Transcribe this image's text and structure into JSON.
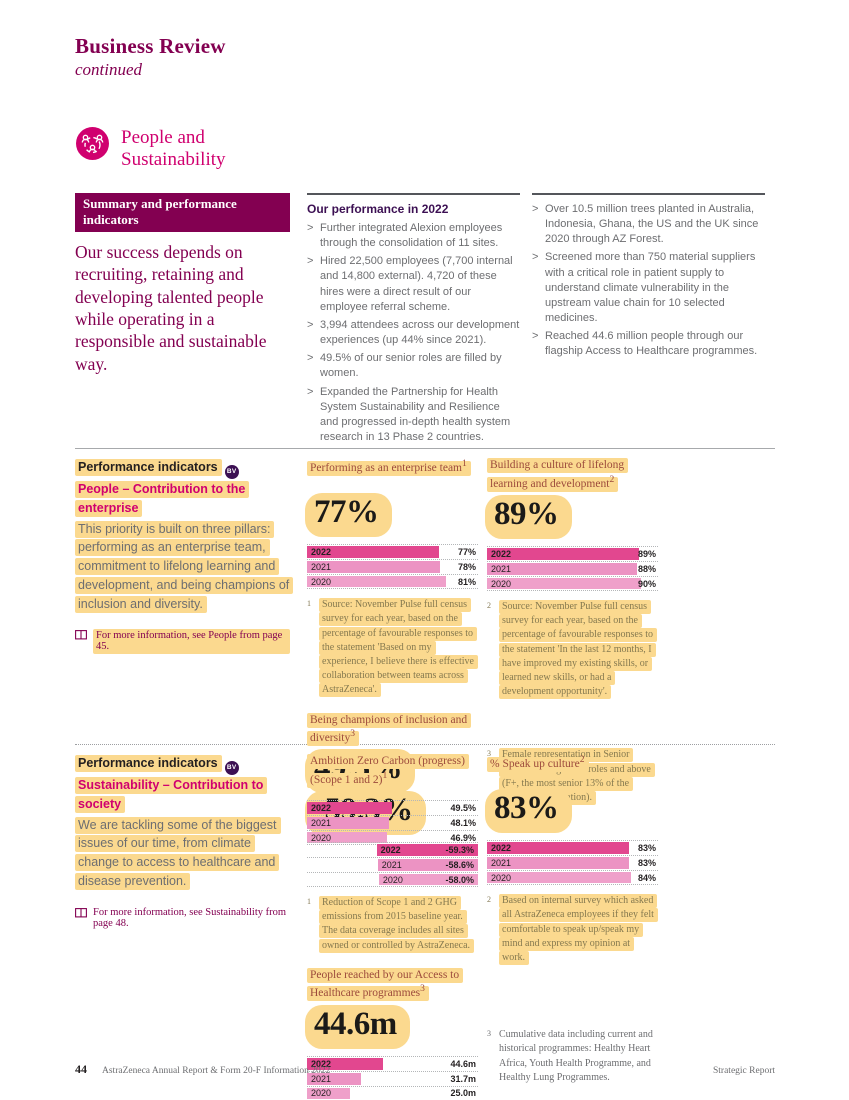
{
  "theme": {
    "mulberry": "#830051",
    "magenta": "#d0006f",
    "purple": "#3c1053",
    "highlight": "#fbd98f",
    "chart_title": "#9c4a3c",
    "bar_colors": [
      "#e2478f",
      "#ec93c3",
      "#efa0ca"
    ]
  },
  "ui": {
    "bullet_char": ">"
  },
  "header": {
    "title": "Business Review",
    "subtitle": "continued"
  },
  "section": {
    "title": "People and Sustainability"
  },
  "summary": {
    "badge": "Summary and performance indicators",
    "text": "Our success depends on recruiting, retaining and developing talented people while operating in a responsible and sustainable way."
  },
  "performance_2022": {
    "heading": "Our performance in 2022",
    "col1_bullets": [
      "Further integrated Alexion employees through the consolidation of 11 sites.",
      "Hired 22,500 employees (7,700 internal and 14,800 external). 4,720 of these hires were a direct result of our employee referral scheme.",
      "3,994 attendees across our development experiences (up 44% since 2021).",
      "49.5% of our senior roles are filled by women.",
      "Expanded the Partnership for Health System Sustainability and Resilience and progressed in-depth health system research in 13 Phase 2 countries."
    ],
    "col2_bullets": [
      "Over 10.5 million trees planted in Australia, Indonesia, Ghana, the US and the UK since 2020 through AZ Forest.",
      "Screened more than 750 material suppliers with a critical role in patient supply to understand climate vulnerability in the upstream value chain for 10 selected medicines.",
      "Reached 44.6 million people through our flagship Access to Healthcare programmes."
    ]
  },
  "indicators_people": {
    "heading": "Performance indicators",
    "badge": "BV",
    "subheading": "People – Contribution to the enterprise",
    "description": "This priority is built on three pillars: performing as an enterprise team, commitment to lifelong learning and development, and being champions of inclusion and diversity.",
    "more_info": "For more information, see People from page 45."
  },
  "indicators_sustainability": {
    "heading": "Performance indicators",
    "badge": "BV",
    "subheading": "Sustainability – Contribution to society",
    "description": "We are tackling some of the biggest issues of our time, from climate change to access to healthcare and disease prevention.",
    "more_info": "For more information, see Sustainability from page 48."
  },
  "chart_data": [
    {
      "type": "bar",
      "title": "Performing as an enterprise team",
      "sup": "1",
      "big": "77%",
      "categories": [
        "2022",
        "2021",
        "2020"
      ],
      "values": [
        77,
        78,
        81
      ],
      "value_labels": [
        "77%",
        "78%",
        "81%"
      ],
      "xmax": 100,
      "direction": "ltr"
    },
    {
      "type": "bar",
      "title": "Building a culture of lifelong learning and development",
      "sup": "2",
      "big": "89%",
      "categories": [
        "2022",
        "2021",
        "2020"
      ],
      "values": [
        89,
        88,
        90
      ],
      "value_labels": [
        "89%",
        "88%",
        "90%"
      ],
      "xmax": 100,
      "direction": "ltr"
    },
    {
      "type": "bar",
      "title": "Being champions of inclusion and diversity",
      "sup": "3",
      "big": "49.5%",
      "categories": [
        "2022",
        "2021",
        "2020"
      ],
      "values": [
        49.5,
        48.1,
        46.9
      ],
      "value_labels": [
        "49.5%",
        "48.1%",
        "46.9%"
      ],
      "xmax": 100,
      "direction": "ltr"
    },
    {
      "type": "bar",
      "title": "Ambition Zero Carbon (progress) (Scope 1 and 2)",
      "sup": "1",
      "big": "-59.3%",
      "categories": [
        "2022",
        "2021",
        "2020"
      ],
      "values": [
        -59.3,
        -58.6,
        -58.0
      ],
      "value_labels": [
        "-59.3%",
        "-58.6%",
        "-58.0%"
      ],
      "xmax": 100,
      "direction": "rtl"
    },
    {
      "type": "bar",
      "title": "% Speak up culture",
      "sup": "2",
      "big": "83%",
      "categories": [
        "2022",
        "2021",
        "2020"
      ],
      "values": [
        83,
        83,
        84
      ],
      "value_labels": [
        "83%",
        "83%",
        "84%"
      ],
      "xmax": 100,
      "direction": "ltr"
    },
    {
      "type": "bar",
      "title": "People reached by our Access to Healthcare programmes",
      "sup": "3",
      "big": "44.6m",
      "categories": [
        "2022",
        "2021",
        "2020"
      ],
      "values": [
        44.6,
        31.7,
        25.0
      ],
      "value_labels": [
        "44.6m",
        "31.7m",
        "25.0m"
      ],
      "xmax": 100,
      "direction": "ltr"
    }
  ],
  "footnotes_people": [
    {
      "sup": "1",
      "text": "Source: November Pulse full census survey for each year, based on the percentage of favourable responses to the statement 'Based on my experience, I believe there is effective collaboration between teams across AstraZeneca'."
    },
    {
      "sup": "2",
      "text": "Source: November Pulse full census survey for each year, based on the percentage of favourable responses to the statement 'In the last 12 months, I have improved my existing skills, or learned new skills, or had a development opportunity'."
    },
    {
      "sup": "3",
      "text": "Female representation in Senior Middle Management roles and above (F+, the most senior 13% of the employee population)."
    }
  ],
  "footnotes_sustainability": [
    {
      "sup": "1",
      "text": "Reduction of Scope 1 and 2 GHG emissions from 2015 baseline year. The data coverage includes all sites owned or controlled by AstraZeneca."
    },
    {
      "sup": "2",
      "text": "Based on internal survey which asked all AstraZeneca employees if they felt comfortable to speak up/speak my mind and express my opinion at work."
    },
    {
      "sup": "3",
      "text": "Cumulative data including current and historical programmes: Healthy Heart Africa, Youth Health Programme, and Healthy Lung Programmes."
    }
  ],
  "footer": {
    "page_number": "44",
    "left_text": "AstraZeneca Annual Report & Form 20-F Information 2022",
    "right_text": "Strategic Report"
  }
}
